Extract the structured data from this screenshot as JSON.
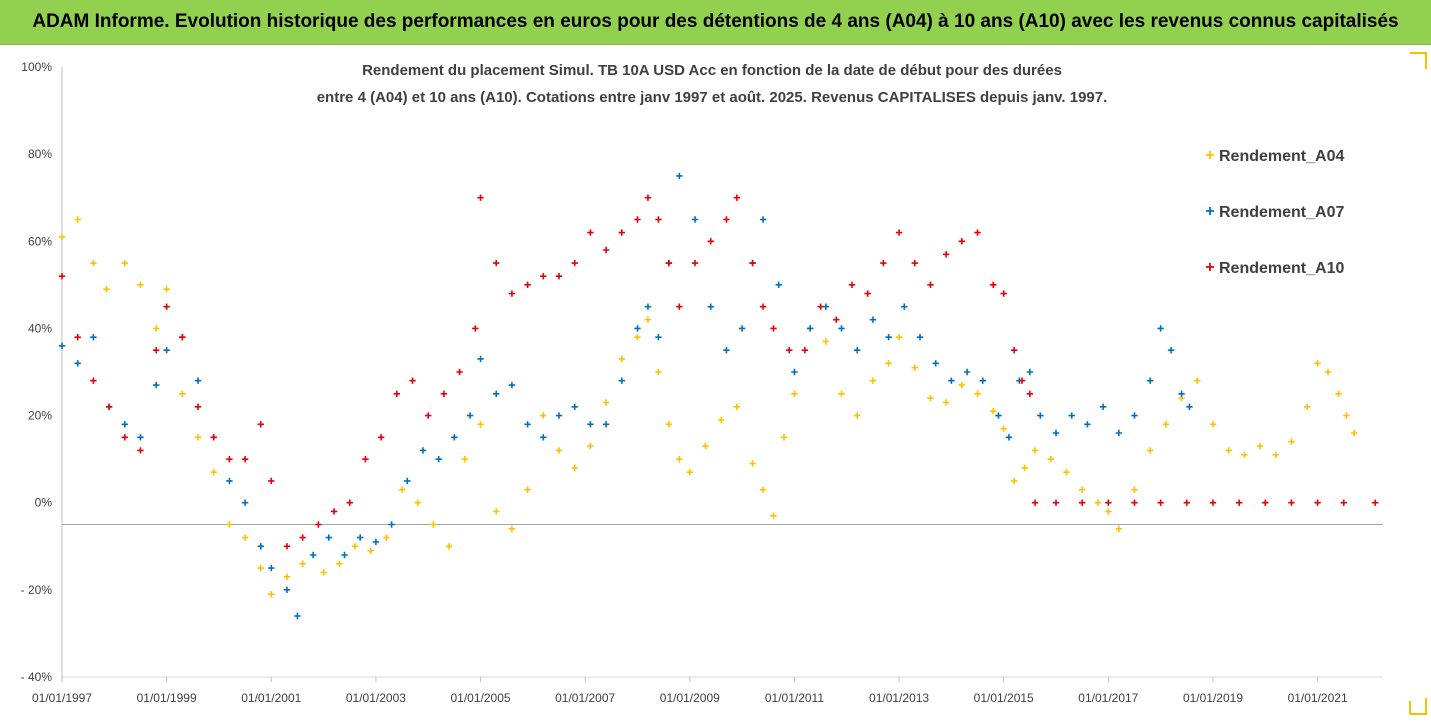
{
  "header": {
    "title": "ADAM Informe. Evolution historique des performances en euros pour des détentions de 4 ans (A04) à 10 ans (A10) avec les revenus connus capitalisés",
    "bg_color": "#92d050"
  },
  "chart_data": {
    "type": "scatter",
    "title_lines": [
      "Rendement du placement Simul. TB 10A USD Acc en fonction de la date de début pour des durées",
      "entre 4 (A04) et 10 ans (A10). Cotations entre janv 1997 et août. 2025. Revenus CAPITALISES depuis janv. 1997."
    ],
    "marker": "+",
    "xlim": [
      1997.0,
      2022.25
    ],
    "ylim": [
      -40,
      100
    ],
    "y_ticks": [
      -40,
      -20,
      0,
      20,
      40,
      60,
      80,
      100
    ],
    "y_tick_labels": [
      "- 40%",
      "- 20%",
      "0%",
      "20%",
      "40%",
      "60%",
      "80%",
      "100%"
    ],
    "x_ticks": [
      1997,
      1999,
      2001,
      2003,
      2005,
      2007,
      2009,
      2011,
      2013,
      2015,
      2017,
      2019,
      2021
    ],
    "x_tick_labels": [
      "01/01/1997",
      "01/01/1999",
      "01/01/2001",
      "01/01/2003",
      "01/01/2005",
      "01/01/2007",
      "01/01/2009",
      "01/01/2011",
      "01/01/2013",
      "01/01/2015",
      "01/01/2017",
      "01/01/2019",
      "01/01/2021"
    ],
    "grid": false,
    "legend_position": "right",
    "series": [
      {
        "name": "Rendement_A04",
        "color": "#ffc000",
        "x": [
          1997.0,
          1997.3,
          1997.6,
          1997.85,
          1998.2,
          1998.5,
          1998.8,
          1999.0,
          1999.3,
          1999.6,
          1999.9,
          2000.2,
          2000.5,
          2000.8,
          2001.0,
          2001.3,
          2001.6,
          2002.0,
          2002.3,
          2002.6,
          2002.9,
          2003.2,
          2003.5,
          2003.8,
          2004.1,
          2004.4,
          2004.7,
          2005.0,
          2005.3,
          2005.6,
          2005.9,
          2006.2,
          2006.5,
          2006.8,
          2007.1,
          2007.4,
          2007.7,
          2008.0,
          2008.2,
          2008.4,
          2008.6,
          2008.8,
          2009.0,
          2009.3,
          2009.6,
          2009.9,
          2010.2,
          2010.4,
          2010.6,
          2010.8,
          2011.0,
          2011.3,
          2011.6,
          2011.9,
          2012.2,
          2012.5,
          2012.8,
          2013.0,
          2013.3,
          2013.6,
          2013.9,
          2014.2,
          2014.5,
          2014.8,
          2015.0,
          2015.2,
          2015.4,
          2015.6,
          2015.9,
          2016.2,
          2016.5,
          2016.8,
          2017.0,
          2017.2,
          2017.5,
          2017.8,
          2018.1,
          2018.4,
          2018.7,
          2019.0,
          2019.3,
          2019.6,
          2019.9,
          2020.2,
          2020.5,
          2020.8,
          2021.0,
          2021.2,
          2021.4,
          2021.55,
          2021.7
        ],
        "y": [
          61,
          65,
          55,
          49,
          55,
          50,
          40,
          49,
          25,
          15,
          7,
          -5,
          -8,
          -15,
          -21,
          -17,
          -14,
          -16,
          -14,
          -10,
          -11,
          -8,
          3,
          0,
          -5,
          -10,
          10,
          18,
          -2,
          -6,
          3,
          20,
          12,
          8,
          13,
          23,
          33,
          38,
          42,
          30,
          18,
          10,
          7,
          13,
          19,
          22,
          9,
          3,
          -3,
          15,
          25,
          40,
          37,
          25,
          20,
          28,
          32,
          38,
          31,
          24,
          23,
          27,
          25,
          21,
          17,
          5,
          8,
          12,
          10,
          7,
          3,
          0,
          -2,
          -6,
          3,
          12,
          18,
          24,
          28,
          18,
          12,
          11,
          13,
          11,
          14,
          22,
          32,
          30,
          25,
          20,
          16
        ]
      },
      {
        "name": "Rendement_A07",
        "color": "#0070c0",
        "x": [
          1997.0,
          1997.3,
          1997.6,
          1997.9,
          1998.2,
          1998.5,
          1998.8,
          1999.0,
          1999.3,
          1999.6,
          1999.9,
          2000.2,
          2000.5,
          2000.8,
          2001.0,
          2001.3,
          2001.5,
          2001.8,
          2002.1,
          2002.4,
          2002.7,
          2003.0,
          2003.3,
          2003.6,
          2003.9,
          2004.2,
          2004.5,
          2004.8,
          2005.0,
          2005.3,
          2005.6,
          2005.9,
          2006.2,
          2006.5,
          2006.8,
          2007.1,
          2007.4,
          2007.7,
          2008.0,
          2008.2,
          2008.4,
          2008.6,
          2008.8,
          2009.1,
          2009.4,
          2009.7,
          2010.0,
          2010.2,
          2010.4,
          2010.7,
          2011.0,
          2011.3,
          2011.6,
          2011.9,
          2012.2,
          2012.5,
          2012.8,
          2013.1,
          2013.4,
          2013.7,
          2014.0,
          2014.3,
          2014.6,
          2014.9,
          2015.1,
          2015.3,
          2015.5,
          2015.7,
          2016.0,
          2016.3,
          2016.6,
          2016.9,
          2017.2,
          2017.5,
          2017.8,
          2018.0,
          2018.2,
          2018.4,
          2018.55
        ],
        "y": [
          36,
          32,
          38,
          22,
          18,
          15,
          27,
          35,
          38,
          28,
          15,
          5,
          0,
          -10,
          -15,
          -20,
          -26,
          -12,
          -8,
          -12,
          -8,
          -9,
          -5,
          5,
          12,
          10,
          15,
          20,
          33,
          25,
          27,
          18,
          15,
          20,
          22,
          18,
          18,
          28,
          40,
          45,
          38,
          55,
          75,
          65,
          45,
          35,
          40,
          55,
          65,
          50,
          30,
          40,
          45,
          40,
          35,
          42,
          38,
          45,
          38,
          32,
          28,
          30,
          28,
          20,
          15,
          28,
          30,
          20,
          16,
          20,
          18,
          22,
          16,
          20,
          28,
          40,
          35,
          25,
          22
        ]
      },
      {
        "name": "Rendement_A10",
        "color": "#e8000b",
        "x": [
          1997.0,
          1997.3,
          1997.6,
          1997.9,
          1998.2,
          1998.5,
          1998.8,
          1999.0,
          1999.3,
          1999.6,
          1999.9,
          2000.2,
          2000.5,
          2000.8,
          2001.0,
          2001.3,
          2001.6,
          2001.9,
          2002.2,
          2002.5,
          2002.8,
          2003.1,
          2003.4,
          2003.7,
          2004.0,
          2004.3,
          2004.6,
          2004.9,
          2005.0,
          2005.3,
          2005.6,
          2005.9,
          2006.2,
          2006.5,
          2006.8,
          2007.1,
          2007.4,
          2007.7,
          2008.0,
          2008.2,
          2008.4,
          2008.6,
          2008.8,
          2009.1,
          2009.4,
          2009.7,
          2009.9,
          2010.2,
          2010.4,
          2010.6,
          2010.9,
          2011.2,
          2011.5,
          2011.8,
          2012.1,
          2012.4,
          2012.7,
          2013.0,
          2013.3,
          2013.6,
          2013.9,
          2014.2,
          2014.5,
          2014.8,
          2015.0,
          2015.2,
          2015.35,
          2015.5
        ],
        "y": [
          52,
          38,
          28,
          22,
          15,
          12,
          35,
          45,
          38,
          22,
          15,
          10,
          10,
          18,
          5,
          -10,
          -8,
          -5,
          -2,
          0,
          10,
          15,
          25,
          28,
          20,
          25,
          30,
          40,
          70,
          55,
          48,
          50,
          52,
          52,
          55,
          62,
          58,
          62,
          65,
          70,
          65,
          55,
          45,
          55,
          60,
          65,
          70,
          55,
          45,
          40,
          35,
          35,
          45,
          42,
          50,
          48,
          55,
          62,
          55,
          50,
          57,
          60,
          62,
          50,
          48,
          35,
          28,
          25
        ]
      },
      {
        "name": "Rendement_A10",
        "color": "#e8000b",
        "x": [
          2015.6,
          2016.0,
          2016.5,
          2017.0,
          2017.5,
          2018.0,
          2018.5,
          2019.0,
          2019.5,
          2020.0,
          2020.5,
          2021.0,
          2021.5,
          2022.1
        ],
        "y": [
          0,
          0,
          0,
          0,
          0,
          0,
          0,
          0,
          0,
          0,
          0,
          0,
          0,
          0
        ]
      }
    ]
  }
}
